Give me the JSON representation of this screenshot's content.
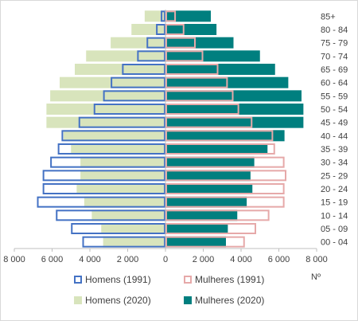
{
  "chart_data": {
    "type": "bar",
    "orientation": "horizontal-population-pyramid",
    "categories": [
      "00 - 04",
      "05 - 09",
      "10 - 14",
      "15 - 19",
      "20 - 24",
      "25 - 29",
      "30 - 34",
      "35 - 39",
      "40 - 44",
      "45 - 49",
      "50 - 54",
      "55 - 59",
      "60 - 64",
      "65 - 69",
      "70 - 74",
      "75 - 79",
      "80 - 84",
      "85+"
    ],
    "series": [
      {
        "name": "Homens (1991)",
        "side": "left",
        "style": "outline",
        "color": "#4472c4",
        "values": [
          4400,
          5000,
          5800,
          6800,
          6500,
          6500,
          6100,
          5700,
          5500,
          4600,
          3800,
          3300,
          2900,
          2300,
          1500,
          1000,
          500,
          250
        ]
      },
      {
        "name": "Mulheres (1991)",
        "side": "right",
        "style": "outline",
        "color": "#e6a9a9",
        "values": [
          4200,
          4800,
          5500,
          6300,
          6300,
          6400,
          6300,
          5800,
          5700,
          4600,
          3900,
          3600,
          3300,
          2800,
          2000,
          1600,
          1000,
          550
        ]
      },
      {
        "name": "Homens (2020)",
        "side": "left",
        "style": "fill",
        "color": "#d8e4bc",
        "values": [
          3300,
          3400,
          3900,
          4300,
          4700,
          4500,
          4500,
          5000,
          5400,
          6300,
          6300,
          6100,
          5600,
          4800,
          4200,
          2900,
          1800,
          1100
        ]
      },
      {
        "name": "Mulheres (2020)",
        "side": "right",
        "style": "fill",
        "color": "#007f7f",
        "values": [
          3200,
          3300,
          3800,
          4300,
          4600,
          4500,
          4700,
          5400,
          6300,
          7300,
          7300,
          7200,
          6500,
          5800,
          5000,
          3600,
          2700,
          2400
        ]
      }
    ],
    "xlabel": "Nº",
    "x_ticks": [
      "8 000",
      "6 000",
      "4 000",
      "2 000",
      "0",
      "2 000",
      "4 000",
      "6 000",
      "8 000"
    ],
    "xlim": [
      -8000,
      8000
    ],
    "legend": "bottom",
    "grid": false
  }
}
